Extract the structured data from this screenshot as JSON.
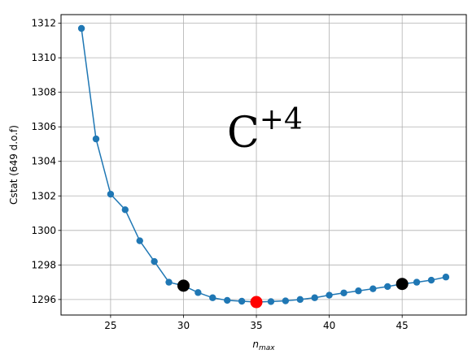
{
  "chart_data": {
    "type": "line",
    "xlabel_main": "n",
    "xlabel_sub": "max",
    "ylabel": "Cstat (649 d.o.f)",
    "annotation_main": "C",
    "annotation_sup": "+4",
    "xlim": [
      21.6,
      49.4
    ],
    "ylim": [
      1295.1,
      1312.5
    ],
    "xticks": [
      25,
      30,
      35,
      40,
      45
    ],
    "yticks": [
      1296,
      1298,
      1300,
      1302,
      1304,
      1306,
      1308,
      1310,
      1312
    ],
    "grid": true,
    "series": [
      {
        "color": "#1f77b4",
        "x": [
          23,
          24,
          25,
          26,
          27,
          28,
          29,
          30,
          31,
          32,
          33,
          34,
          35,
          36,
          37,
          38,
          39,
          40,
          41,
          42,
          43,
          44,
          45,
          46,
          47,
          48
        ],
        "y": [
          1311.7,
          1305.3,
          1302.1,
          1301.2,
          1299.4,
          1298.2,
          1297.0,
          1296.8,
          1296.4,
          1296.1,
          1295.95,
          1295.9,
          1295.85,
          1295.88,
          1295.92,
          1296.0,
          1296.1,
          1296.25,
          1296.38,
          1296.5,
          1296.62,
          1296.75,
          1296.9,
          1297.0,
          1297.12,
          1297.3
        ]
      }
    ],
    "highlights": [
      {
        "x": 30,
        "y": 1296.8,
        "color": "#000000"
      },
      {
        "x": 35,
        "y": 1295.85,
        "color": "#ff0000"
      },
      {
        "x": 45,
        "y": 1296.9,
        "color": "#000000"
      }
    ]
  }
}
